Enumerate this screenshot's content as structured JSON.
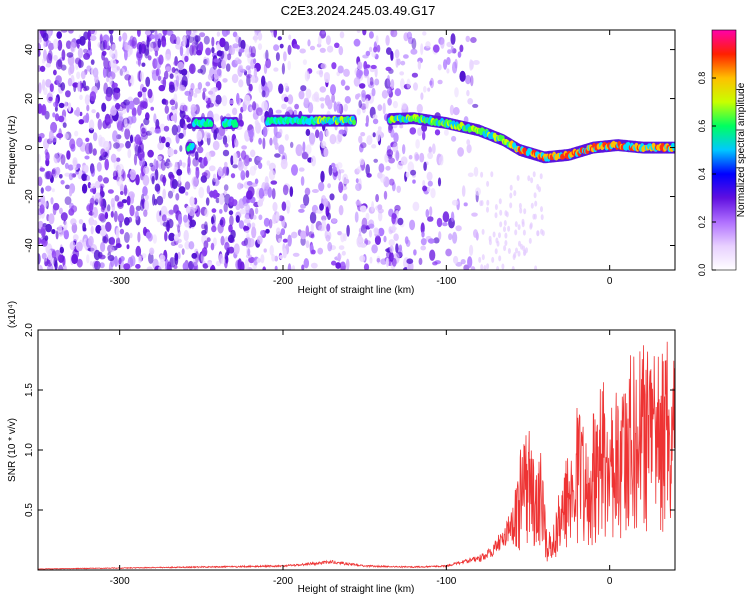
{
  "title": "C2E3.2024.245.03.49.G17",
  "chart_data": [
    {
      "type": "heatmap",
      "xlabel": "Height of straight line (km)",
      "ylabel": "Frequency (Hz)",
      "xlim": [
        -350,
        40
      ],
      "ylim": [
        -50,
        48
      ],
      "xticks": [
        -300,
        -200,
        -100,
        0
      ],
      "yticks": [
        -40,
        -20,
        0,
        20,
        40
      ],
      "grid": false,
      "colorbar": {
        "label": "Normalized spectral amplitude",
        "range": [
          0,
          1
        ],
        "ticks": [
          0.0,
          0.2,
          0.4,
          0.6,
          0.8
        ],
        "colors": [
          "#ffffff",
          "#e8d0ff",
          "#b070ff",
          "#6010e0",
          "#0000ff",
          "#00c8ff",
          "#00ff60",
          "#c8ff00",
          "#ffc000",
          "#ff2000",
          "#ff00aa"
        ]
      },
      "signal_ridge": {
        "x": [
          -255,
          -230,
          -205,
          -170,
          -158,
          -120,
          -100,
          -80,
          -65,
          -55,
          -40,
          -25,
          -10,
          5,
          20,
          40
        ],
        "y": [
          10,
          10,
          11,
          11,
          11,
          12,
          10,
          7,
          3,
          -1,
          -4,
          -3,
          0,
          1,
          0,
          0
        ]
      }
    },
    {
      "type": "line",
      "xlabel": "Height of straight line (km)",
      "ylabel": "SNR (10 * v/v)",
      "y_scale_note": "(x10⁴)",
      "xlim": [
        -350,
        40
      ],
      "ylim": [
        0,
        2.0
      ],
      "xticks": [
        -300,
        -200,
        -100,
        0
      ],
      "yticks": [
        0.5,
        1.0,
        1.5,
        2.0
      ],
      "ytick_labels": [
        "0.5",
        "1.0",
        "1.5",
        "2.0"
      ],
      "grid": false,
      "series": [
        {
          "color": "#ee3333",
          "x": [
            -350,
            -300,
            -250,
            -200,
            -170,
            -150,
            -120,
            -100,
            -80,
            -70,
            -60,
            -55,
            -50,
            -45,
            -42,
            -38,
            -35,
            -30,
            -25,
            -20,
            -15,
            -10,
            -5,
            0,
            5,
            10,
            15,
            20,
            30,
            40
          ],
          "y": [
            0.01,
            0.02,
            0.03,
            0.04,
            0.08,
            0.04,
            0.03,
            0.04,
            0.12,
            0.25,
            0.5,
            1.0,
            1.25,
            0.8,
            1.0,
            0.3,
            0.4,
            0.7,
            1.1,
            1.5,
            1.2,
            1.35,
            1.6,
            1.5,
            1.7,
            1.75,
            1.85,
            1.9,
            1.95,
            2.0
          ]
        }
      ]
    }
  ]
}
